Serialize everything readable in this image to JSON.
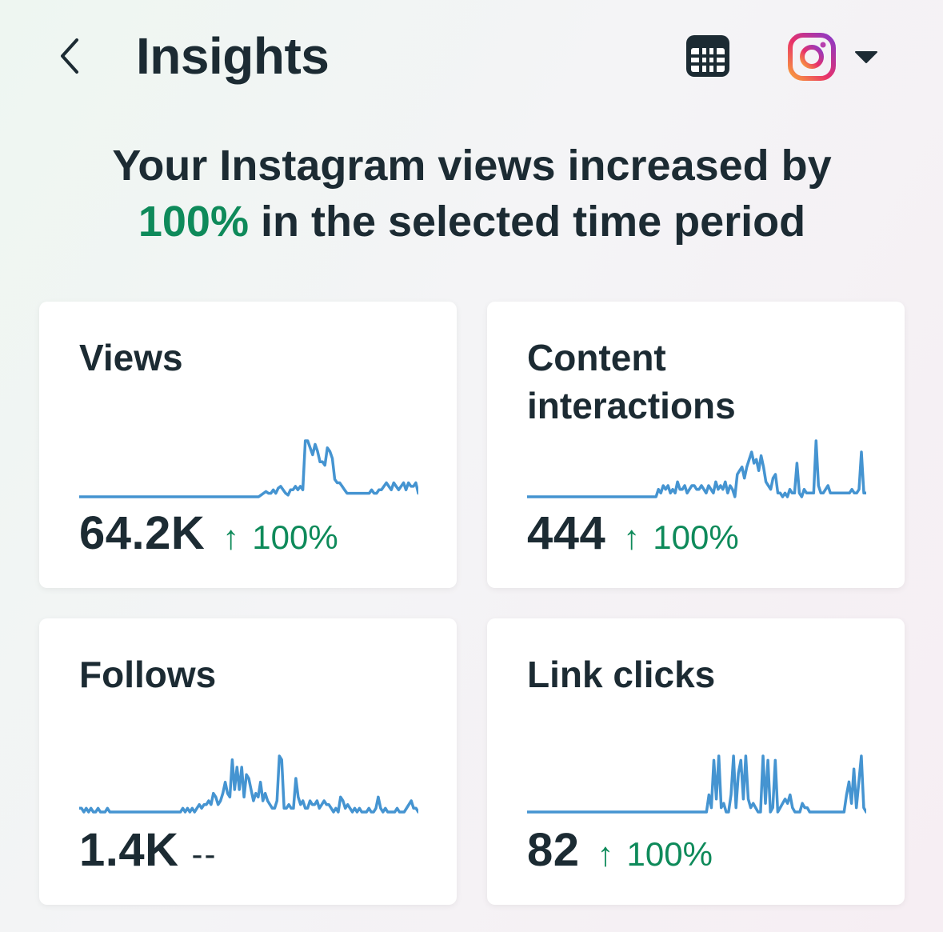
{
  "header": {
    "title": "Insights",
    "back_icon": "chevron-left-icon",
    "calendar_icon": "calendar-icon",
    "account_icon": "instagram-icon",
    "dropdown_icon": "caret-down-icon"
  },
  "summary": {
    "prefix": "Your Instagram views increased by",
    "percent": "100%",
    "suffix": "in the selected time period"
  },
  "colors": {
    "accent_green": "#0e8a5a",
    "sparkline_blue": "#4594d1",
    "text": "#1c2b33"
  },
  "cards": [
    {
      "label": "Views",
      "value": "64.2K",
      "arrow": "↑",
      "change": "100%"
    },
    {
      "label": "Content interactions",
      "value": "444",
      "arrow": "↑",
      "change": "100%"
    },
    {
      "label": "Follows",
      "value": "1.4K",
      "no_change": "--"
    },
    {
      "label": "Link clicks",
      "value": "82",
      "arrow": "↑",
      "change": "100%"
    }
  ],
  "chart_data": [
    {
      "type": "line",
      "series": [
        {
          "values": [
            0,
            0,
            0,
            0,
            0,
            0,
            0,
            0,
            0,
            0,
            0,
            0,
            0,
            0,
            0,
            0,
            0,
            0,
            0,
            0,
            0,
            0,
            0,
            0,
            0,
            0,
            0,
            0,
            0,
            0,
            0,
            0,
            0,
            0,
            0,
            0,
            0,
            0,
            0,
            0,
            0,
            0,
            0,
            0,
            0,
            0,
            0,
            0,
            0,
            0,
            0,
            0,
            0,
            0,
            0,
            0,
            0,
            0,
            0,
            0,
            0,
            0,
            0,
            0,
            0,
            0,
            0,
            0,
            0,
            0,
            0,
            0,
            0,
            0,
            0.5,
            1,
            1.5,
            1,
            1,
            2,
            1,
            2.5,
            3,
            2,
            1,
            0.5,
            2,
            2,
            3,
            2,
            3,
            2,
            16,
            16,
            14,
            12,
            15,
            13,
            10,
            10,
            9,
            14,
            13,
            11,
            5,
            4,
            4,
            3,
            2,
            1,
            1,
            1,
            1,
            1,
            1,
            1,
            1,
            1,
            1,
            2,
            1,
            1,
            2,
            2,
            3,
            4,
            3,
            2,
            4,
            3,
            2,
            3,
            4,
            2,
            4,
            3,
            3,
            4,
            1
          ]
        }
      ]
    },
    {
      "type": "line",
      "series": [
        {
          "values": [
            0,
            0,
            0,
            0,
            0,
            0,
            0,
            0,
            0,
            0,
            0,
            0,
            0,
            0,
            0,
            0,
            0,
            0,
            0,
            0,
            0,
            0,
            0,
            0,
            0,
            0,
            0,
            0,
            0,
            0,
            0,
            0,
            0,
            0,
            0,
            0,
            0,
            0,
            0,
            0,
            0,
            0,
            0,
            0,
            0,
            0,
            0,
            0,
            0,
            0,
            0,
            0,
            0,
            0,
            0,
            2,
            1,
            3,
            2,
            3,
            1,
            2,
            1,
            4,
            2,
            2,
            3,
            1,
            2,
            3,
            3,
            2,
            2,
            3,
            2,
            1,
            3,
            2,
            1,
            4,
            2,
            3,
            2,
            4,
            1,
            3,
            2,
            0,
            6,
            7,
            8,
            5,
            8,
            10,
            12,
            9,
            10,
            7,
            11,
            8,
            4,
            3,
            2,
            5,
            6,
            1,
            1,
            0,
            1,
            0,
            2,
            1,
            1,
            9,
            1,
            0,
            2,
            1,
            1,
            1,
            1,
            15,
            3,
            1,
            1,
            2,
            3,
            1,
            1,
            1,
            1,
            1,
            1,
            1,
            1,
            1,
            2,
            1,
            1,
            2,
            12,
            1,
            1
          ]
        }
      ]
    },
    {
      "type": "line",
      "series": [
        {
          "values": [
            1,
            1,
            0,
            1,
            0,
            1,
            0,
            0,
            1,
            0,
            0,
            0,
            1,
            0,
            0,
            0,
            0,
            0,
            0,
            0,
            0,
            0,
            0,
            0,
            0,
            0,
            0,
            0,
            0,
            0,
            0,
            0,
            0,
            0,
            0,
            0,
            0,
            0,
            0,
            0,
            0,
            0,
            0,
            0,
            1,
            0,
            1,
            0,
            1,
            0,
            1,
            2,
            1,
            2,
            2,
            3,
            2,
            5,
            4,
            2,
            3,
            5,
            8,
            5,
            4,
            14,
            6,
            12,
            6,
            12,
            4,
            10,
            9,
            6,
            3,
            5,
            4,
            8,
            3,
            5,
            3,
            2,
            1,
            1,
            3,
            15,
            14,
            1,
            1,
            2,
            1,
            1,
            9,
            4,
            2,
            3,
            1,
            1,
            3,
            2,
            2,
            3,
            1,
            2,
            3,
            2,
            2,
            1,
            0,
            1,
            0,
            4,
            3,
            1,
            2,
            1,
            0,
            1,
            0,
            1,
            0,
            0,
            0,
            1,
            0,
            0,
            1,
            4,
            1,
            0,
            1,
            0,
            0,
            0,
            0,
            1,
            0,
            0,
            0,
            1,
            2,
            3,
            1,
            1,
            0
          ]
        }
      ]
    },
    {
      "type": "line",
      "series": [
        {
          "values": [
            0,
            0,
            0,
            0,
            0,
            0,
            0,
            0,
            0,
            0,
            0,
            0,
            0,
            0,
            0,
            0,
            0,
            0,
            0,
            0,
            0,
            0,
            0,
            0,
            0,
            0,
            0,
            0,
            0,
            0,
            0,
            0,
            0,
            0,
            0,
            0,
            0,
            0,
            0,
            0,
            0,
            0,
            0,
            0,
            0,
            0,
            0,
            0,
            0,
            0,
            0,
            0,
            0,
            0,
            0,
            0,
            0,
            0,
            0,
            0,
            0,
            0,
            0,
            0,
            0,
            0,
            0,
            0,
            0,
            0,
            0,
            0,
            0,
            0,
            4,
            1,
            12,
            3,
            13,
            1,
            2,
            0,
            0,
            4,
            13,
            1,
            9,
            12,
            3,
            13,
            3,
            1,
            2,
            1,
            0,
            0,
            13,
            2,
            12,
            0,
            1,
            12,
            0,
            1,
            2,
            3,
            2,
            4,
            1,
            0,
            0,
            0,
            2,
            1,
            1,
            0,
            0,
            0,
            0,
            0,
            0,
            0,
            0,
            0,
            0,
            0,
            0,
            0,
            0,
            0,
            4,
            7,
            2,
            10,
            1,
            7,
            13,
            1,
            0
          ]
        }
      ]
    }
  ]
}
